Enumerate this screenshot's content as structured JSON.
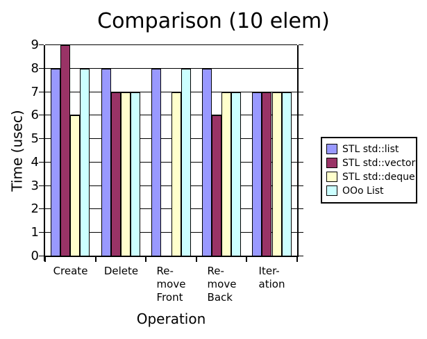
{
  "chart_data": {
    "type": "bar",
    "title": "Comparison (10 elem)",
    "xlabel": "Operation",
    "ylabel": "Time (usec)",
    "ylim": [
      0,
      9
    ],
    "yticks": [
      0,
      1,
      2,
      3,
      4,
      5,
      6,
      7,
      8,
      9
    ],
    "grid": "horizontal",
    "legend_position": "right-middle",
    "categories": [
      "Create",
      "Delete",
      "Remove Front",
      "Remove Back",
      "Iteration"
    ],
    "category_display_lines": [
      [
        "Create"
      ],
      [
        "Delete"
      ],
      [
        "Re-",
        "move",
        "Front"
      ],
      [
        "Re-",
        "move",
        "Back"
      ],
      [
        "Iter-",
        "ation"
      ]
    ],
    "series": [
      {
        "name": "STL std::list",
        "color": "#9999FF",
        "values": [
          8,
          8,
          8,
          8,
          7
        ]
      },
      {
        "name": "STL std::vector",
        "color": "#993366",
        "values": [
          9,
          7,
          0,
          6,
          7
        ]
      },
      {
        "name": "STL std::deque",
        "color": "#FFFFCC",
        "values": [
          6,
          7,
          7,
          7,
          7
        ]
      },
      {
        "name": "OOo List",
        "color": "#CCFFFF",
        "values": [
          8,
          7,
          8,
          7,
          7
        ]
      }
    ]
  },
  "colors": {
    "background": "#FFFFFF",
    "axis": "#000000",
    "gridline": "#000000",
    "bar_border": "#000000",
    "text": "#000000"
  }
}
